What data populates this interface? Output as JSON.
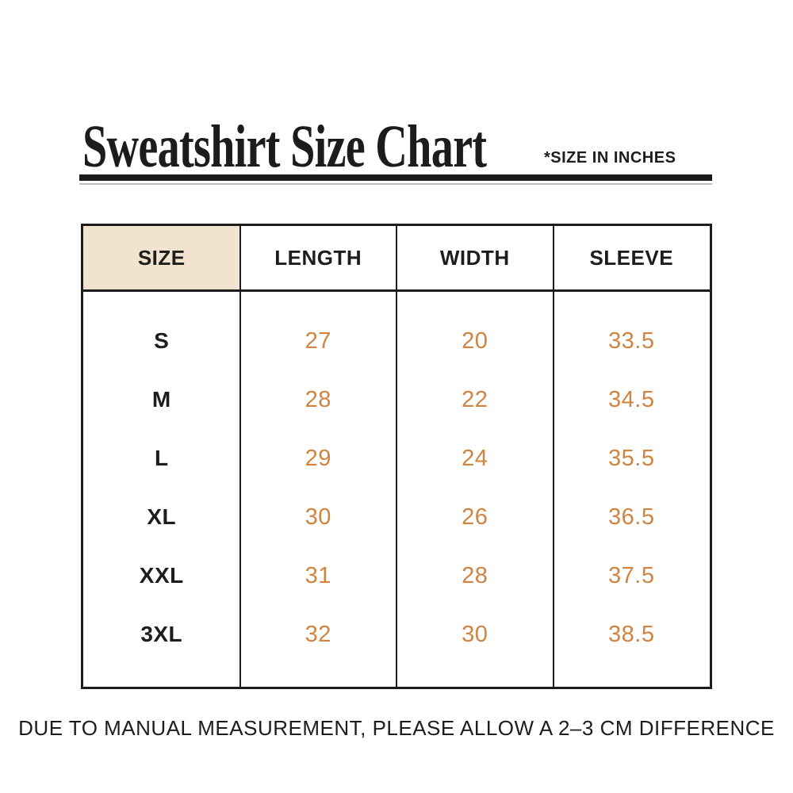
{
  "header": {
    "title": "Sweatshirt Size Chart",
    "units_note": "*SIZE IN INCHES"
  },
  "table": {
    "columns": [
      "SIZE",
      "LENGTH",
      "WIDTH",
      "SLEEVE"
    ],
    "rows": [
      {
        "size": "S",
        "length": "27",
        "width": "20",
        "sleeve": "33.5"
      },
      {
        "size": "M",
        "length": "28",
        "width": "22",
        "sleeve": "34.5"
      },
      {
        "size": "L",
        "length": "29",
        "width": "24",
        "sleeve": "35.5"
      },
      {
        "size": "XL",
        "length": "30",
        "width": "26",
        "sleeve": "36.5"
      },
      {
        "size": "XXL",
        "length": "31",
        "width": "28",
        "sleeve": "37.5"
      },
      {
        "size": "3XL",
        "length": "32",
        "width": "30",
        "sleeve": "38.5"
      }
    ]
  },
  "footer": {
    "note": "DUE TO MANUAL MEASUREMENT, PLEASE ALLOW A 2–3 CM DIFFERENCE"
  },
  "colors": {
    "size_header_bg": "#f2e2d0",
    "value_text": "#d08440",
    "ink": "#1d1d1b"
  },
  "chart_data": {
    "type": "table",
    "title": "Sweatshirt Size Chart",
    "units": "inches",
    "columns": [
      "SIZE",
      "LENGTH",
      "WIDTH",
      "SLEEVE"
    ],
    "rows": [
      [
        "S",
        27,
        20,
        33.5
      ],
      [
        "M",
        28,
        22,
        34.5
      ],
      [
        "L",
        29,
        24,
        35.5
      ],
      [
        "XL",
        30,
        26,
        36.5
      ],
      [
        "XXL",
        31,
        28,
        37.5
      ],
      [
        "3XL",
        32,
        30,
        38.5
      ]
    ]
  }
}
